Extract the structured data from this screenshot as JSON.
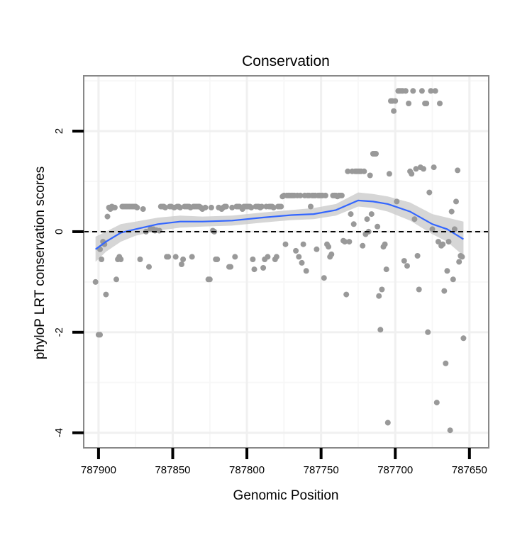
{
  "chart_data": {
    "type": "scatter",
    "title": "Conservation",
    "xlabel": "Genomic Position",
    "ylabel": "phyloP LRT conservation scores",
    "x_reversed": true,
    "xlim": [
      787910,
      787637
    ],
    "ylim": [
      -4.3,
      3.1
    ],
    "x_ticks": [
      787900,
      787850,
      787800,
      787750,
      787700,
      787650
    ],
    "x_tick_labels": [
      "787900",
      "787850",
      "787800",
      "787750",
      "787700",
      "787650"
    ],
    "y_ticks": [
      -4,
      -2,
      0,
      2
    ],
    "y_tick_labels": [
      "-4",
      "-2",
      "0",
      "2"
    ],
    "reference_line": {
      "y": 0,
      "style": "dashed",
      "color": "#000000"
    },
    "grid": true,
    "legend": "none",
    "colors": {
      "points": "#999999",
      "smooth": "#3366ff",
      "ribbon": "#cccccc",
      "panel_border": "#888888",
      "grid": "#f0f0f0"
    },
    "series": [
      {
        "kind": "points",
        "points": [
          [
            787902,
            -1.0
          ],
          [
            787900,
            -2.05
          ],
          [
            787899,
            -2.05
          ],
          [
            787899,
            -0.35
          ],
          [
            787898,
            -0.55
          ],
          [
            787897,
            -0.2
          ],
          [
            787896,
            -0.25
          ],
          [
            787895,
            -1.25
          ],
          [
            787894,
            0.3
          ],
          [
            787893,
            0.48
          ],
          [
            787892,
            0.45
          ],
          [
            787891,
            0.5
          ],
          [
            787890,
            0.48
          ],
          [
            787889,
            0.48
          ],
          [
            787888,
            -0.95
          ],
          [
            787887,
            -0.55
          ],
          [
            787886,
            -0.5
          ],
          [
            787885,
            -0.55
          ],
          [
            787884,
            0.5
          ],
          [
            787883,
            0.5
          ],
          [
            787882,
            0.5
          ],
          [
            787881,
            0.5
          ],
          [
            787880,
            0.5
          ],
          [
            787879,
            0.5
          ],
          [
            787878,
            0.5
          ],
          [
            787877,
            0.5
          ],
          [
            787876,
            0.5
          ],
          [
            787875,
            0.5
          ],
          [
            787874,
            0.48
          ],
          [
            787872,
            -0.55
          ],
          [
            787870,
            0.45
          ],
          [
            787868,
            0.0
          ],
          [
            787866,
            -0.7
          ],
          [
            787865,
            0.05
          ],
          [
            787864,
            0.05
          ],
          [
            787863,
            0.05
          ],
          [
            787862,
            0.02
          ],
          [
            787861,
            0.03
          ],
          [
            787859,
            0.02
          ],
          [
            787858,
            0.5
          ],
          [
            787857,
            0.5
          ],
          [
            787856,
            0.5
          ],
          [
            787855,
            0.48
          ],
          [
            787854,
            -0.5
          ],
          [
            787853,
            -0.5
          ],
          [
            787852,
            0.5
          ],
          [
            787851,
            0.5
          ],
          [
            787849,
            0.48
          ],
          [
            787848,
            -0.5
          ],
          [
            787847,
            0.5
          ],
          [
            787846,
            0.5
          ],
          [
            787845,
            0.48
          ],
          [
            787844,
            -0.65
          ],
          [
            787843,
            -0.55
          ],
          [
            787842,
            0.5
          ],
          [
            787841,
            0.5
          ],
          [
            787840,
            0.5
          ],
          [
            787839,
            0.5
          ],
          [
            787838,
            0.48
          ],
          [
            787837,
            -0.5
          ],
          [
            787836,
            0.5
          ],
          [
            787835,
            0.5
          ],
          [
            787834,
            0.5
          ],
          [
            787833,
            0.5
          ],
          [
            787832,
            0.5
          ],
          [
            787831,
            0.48
          ],
          [
            787830,
            0.45
          ],
          [
            787828,
            0.48
          ],
          [
            787826,
            -0.95
          ],
          [
            787825,
            -0.95
          ],
          [
            787824,
            0.48
          ],
          [
            787823,
            0.02
          ],
          [
            787822,
            0.0
          ],
          [
            787821,
            -0.55
          ],
          [
            787820,
            -0.55
          ],
          [
            787819,
            0.48
          ],
          [
            787817,
            0.45
          ],
          [
            787816,
            0.48
          ],
          [
            787815,
            0.5
          ],
          [
            787814,
            0.5
          ],
          [
            787812,
            -0.7
          ],
          [
            787811,
            -0.7
          ],
          [
            787810,
            0.48
          ],
          [
            787808,
            -0.5
          ],
          [
            787807,
            0.5
          ],
          [
            787806,
            0.5
          ],
          [
            787805,
            0.5
          ],
          [
            787803,
            0.45
          ],
          [
            787802,
            0.5
          ],
          [
            787801,
            0.5
          ],
          [
            787800,
            0.5
          ],
          [
            787799,
            0.5
          ],
          [
            787798,
            0.5
          ],
          [
            787797,
            0.48
          ],
          [
            787796,
            -0.55
          ],
          [
            787795,
            -0.75
          ],
          [
            787794,
            0.5
          ],
          [
            787793,
            0.5
          ],
          [
            787792,
            0.5
          ],
          [
            787791,
            0.48
          ],
          [
            787790,
            0.5
          ],
          [
            787789,
            -0.72
          ],
          [
            787788,
            -0.55
          ],
          [
            787787,
            0.5
          ],
          [
            787786,
            -0.5
          ],
          [
            787785,
            0.5
          ],
          [
            787784,
            0.5
          ],
          [
            787783,
            0.5
          ],
          [
            787782,
            0.48
          ],
          [
            787781,
            -0.55
          ],
          [
            787780,
            -0.5
          ],
          [
            787779,
            0.5
          ],
          [
            787778,
            0.5
          ],
          [
            787777,
            0.5
          ],
          [
            787776,
            0.7
          ],
          [
            787775,
            0.72
          ],
          [
            787774,
            -0.25
          ],
          [
            787773,
            0.72
          ],
          [
            787772,
            0.72
          ],
          [
            787771,
            0.72
          ],
          [
            787770,
            0.72
          ],
          [
            787769,
            0.72
          ],
          [
            787768,
            0.72
          ],
          [
            787767,
            -0.38
          ],
          [
            787766,
            0.72
          ],
          [
            787765,
            -0.5
          ],
          [
            787764,
            0.72
          ],
          [
            787763,
            -0.62
          ],
          [
            787762,
            -0.25
          ],
          [
            787761,
            0.72
          ],
          [
            787760,
            -0.78
          ],
          [
            787759,
            0.72
          ],
          [
            787758,
            0.72
          ],
          [
            787757,
            0.5
          ],
          [
            787756,
            0.72
          ],
          [
            787755,
            0.72
          ],
          [
            787754,
            0.72
          ],
          [
            787753,
            -0.35
          ],
          [
            787752,
            0.72
          ],
          [
            787751,
            0.72
          ],
          [
            787750,
            0.72
          ],
          [
            787749,
            0.72
          ],
          [
            787748,
            -0.92
          ],
          [
            787747,
            0.72
          ],
          [
            787746,
            -0.25
          ],
          [
            787745,
            -0.3
          ],
          [
            787744,
            -0.5
          ],
          [
            787743,
            -0.45
          ],
          [
            787742,
            0.72
          ],
          [
            787741,
            0.72
          ],
          [
            787740,
            0.72
          ],
          [
            787739,
            0.7
          ],
          [
            787738,
            0.72
          ],
          [
            787737,
            0.72
          ],
          [
            787736,
            0.72
          ],
          [
            787735,
            -0.18
          ],
          [
            787734,
            -0.2
          ],
          [
            787733,
            -1.25
          ],
          [
            787732,
            1.2
          ],
          [
            787731,
            -0.2
          ],
          [
            787730,
            0.35
          ],
          [
            787729,
            1.2
          ],
          [
            787728,
            0.15
          ],
          [
            787727,
            1.2
          ],
          [
            787726,
            1.2
          ],
          [
            787725,
            1.2
          ],
          [
            787724,
            1.2
          ],
          [
            787723,
            1.2
          ],
          [
            787722,
            -0.28
          ],
          [
            787721,
            1.2
          ],
          [
            787720,
            -0.05
          ],
          [
            787719,
            0.25
          ],
          [
            787718,
            0.0
          ],
          [
            787717,
            1.12
          ],
          [
            787716,
            0.35
          ],
          [
            787715,
            1.55
          ],
          [
            787714,
            1.55
          ],
          [
            787713,
            1.55
          ],
          [
            787712,
            0.1
          ],
          [
            787711,
            -1.28
          ],
          [
            787710,
            -1.95
          ],
          [
            787709,
            -1.15
          ],
          [
            787708,
            -0.3
          ],
          [
            787707,
            -0.25
          ],
          [
            787706,
            -0.75
          ],
          [
            787705,
            -3.8
          ],
          [
            787704,
            1.15
          ],
          [
            787703,
            2.6
          ],
          [
            787702,
            2.6
          ],
          [
            787701,
            2.4
          ],
          [
            787700,
            2.6
          ],
          [
            787699,
            0.6
          ],
          [
            787698,
            2.8
          ],
          [
            787697,
            2.8
          ],
          [
            787696,
            2.8
          ],
          [
            787695,
            2.8
          ],
          [
            787694,
            -0.58
          ],
          [
            787693,
            2.8
          ],
          [
            787692,
            -0.68
          ],
          [
            787691,
            2.55
          ],
          [
            787690,
            1.2
          ],
          [
            787689,
            1.15
          ],
          [
            787688,
            2.8
          ],
          [
            787687,
            0.25
          ],
          [
            787686,
            1.25
          ],
          [
            787685,
            -0.48
          ],
          [
            787684,
            -1.15
          ],
          [
            787683,
            1.28
          ],
          [
            787682,
            2.8
          ],
          [
            787681,
            1.25
          ],
          [
            787680,
            2.55
          ],
          [
            787679,
            2.55
          ],
          [
            787678,
            -2.0
          ],
          [
            787677,
            0.78
          ],
          [
            787676,
            2.8
          ],
          [
            787675,
            0.05
          ],
          [
            787674,
            1.28
          ],
          [
            787673,
            2.8
          ],
          [
            787672,
            -3.4
          ],
          [
            787671,
            -0.2
          ],
          [
            787670,
            2.55
          ],
          [
            787669,
            -0.28
          ],
          [
            787668,
            -0.25
          ],
          [
            787667,
            -1.18
          ],
          [
            787666,
            -2.62
          ],
          [
            787665,
            -0.78
          ],
          [
            787664,
            -0.2
          ],
          [
            787663,
            -3.95
          ],
          [
            787662,
            0.4
          ],
          [
            787661,
            -0.95
          ],
          [
            787660,
            0.05
          ],
          [
            787659,
            0.6
          ],
          [
            787658,
            1.22
          ],
          [
            787657,
            -0.6
          ],
          [
            787656,
            -0.48
          ],
          [
            787655,
            -0.5
          ],
          [
            787654,
            -2.12
          ]
        ]
      },
      {
        "kind": "smooth",
        "method": "loess",
        "points": [
          [
            787902,
            -0.35,
            -0.6,
            -0.1
          ],
          [
            787895,
            -0.2,
            -0.4,
            0.0
          ],
          [
            787885,
            -0.02,
            -0.2,
            0.15
          ],
          [
            787875,
            0.05,
            -0.08,
            0.2
          ],
          [
            787860,
            0.15,
            0.02,
            0.28
          ],
          [
            787845,
            0.2,
            0.08,
            0.32
          ],
          [
            787830,
            0.2,
            0.1,
            0.3
          ],
          [
            787810,
            0.22,
            0.12,
            0.32
          ],
          [
            787790,
            0.28,
            0.18,
            0.38
          ],
          [
            787770,
            0.33,
            0.23,
            0.43
          ],
          [
            787755,
            0.35,
            0.25,
            0.47
          ],
          [
            787740,
            0.43,
            0.32,
            0.55
          ],
          [
            787725,
            0.62,
            0.5,
            0.78
          ],
          [
            787715,
            0.6,
            0.47,
            0.75
          ],
          [
            787705,
            0.55,
            0.4,
            0.7
          ],
          [
            787690,
            0.4,
            0.22,
            0.58
          ],
          [
            787675,
            0.15,
            -0.05,
            0.35
          ],
          [
            787665,
            0.05,
            -0.2,
            0.28
          ],
          [
            787654,
            -0.15,
            -0.48,
            0.2
          ]
        ]
      }
    ]
  }
}
